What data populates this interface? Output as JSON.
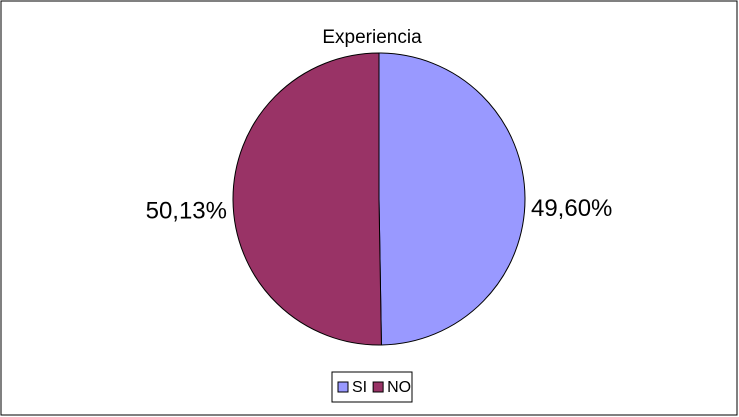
{
  "chart_data": {
    "type": "pie",
    "title": "Experiencia",
    "categories": [
      "SI",
      "NO"
    ],
    "values": [
      49.6,
      50.13
    ],
    "value_labels": [
      "49,60%",
      "50,13%"
    ],
    "colors": [
      "#9999ff",
      "#993366"
    ],
    "legend": "bottom"
  }
}
